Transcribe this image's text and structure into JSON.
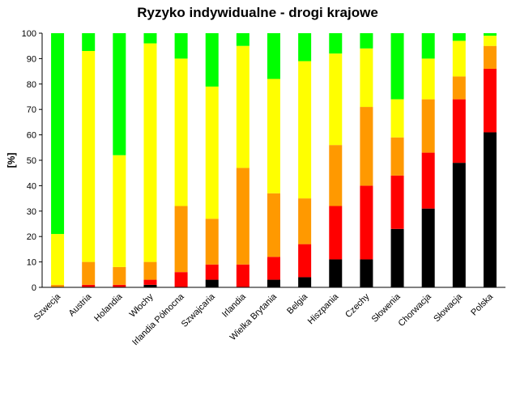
{
  "chart_data": {
    "type": "bar",
    "stacked": true,
    "title": "Ryzyko indywidualne - drogi krajowe",
    "ylabel": "[%]",
    "xlabel": "",
    "ylim": [
      0,
      100
    ],
    "yticks": [
      0,
      10,
      20,
      30,
      40,
      50,
      60,
      70,
      80,
      90,
      100
    ],
    "grid": false,
    "legend": "none",
    "categories": [
      "Szwecja",
      "Austria",
      "Holandia",
      "Włochy",
      "Irlandia Północna",
      "Szwajcaria",
      "Irlandia",
      "Wielka Brytania",
      "Belgia",
      "Hiszpania",
      "Czechy",
      "Słowenia",
      "Chorwacja",
      "Słowacja",
      "Polska"
    ],
    "series": [
      {
        "color": "#000000",
        "values": [
          0,
          0,
          0,
          1,
          0,
          3,
          0,
          3,
          4,
          11,
          11,
          23,
          31,
          49,
          61
        ]
      },
      {
        "color": "#ff0000",
        "values": [
          0,
          1,
          1,
          2,
          6,
          6,
          9,
          9,
          13,
          21,
          29,
          21,
          22,
          25,
          25
        ]
      },
      {
        "color": "#ff9900",
        "values": [
          1,
          9,
          7,
          7,
          26,
          18,
          38,
          25,
          18,
          24,
          31,
          15,
          21,
          9,
          9
        ]
      },
      {
        "color": "#ffff00",
        "values": [
          20,
          83,
          44,
          86,
          58,
          52,
          48,
          45,
          54,
          36,
          23,
          15,
          16,
          14,
          4
        ]
      },
      {
        "color": "#00ff00",
        "values": [
          79,
          7,
          48,
          4,
          10,
          21,
          5,
          18,
          11,
          8,
          6,
          26,
          10,
          3,
          1
        ]
      }
    ]
  }
}
